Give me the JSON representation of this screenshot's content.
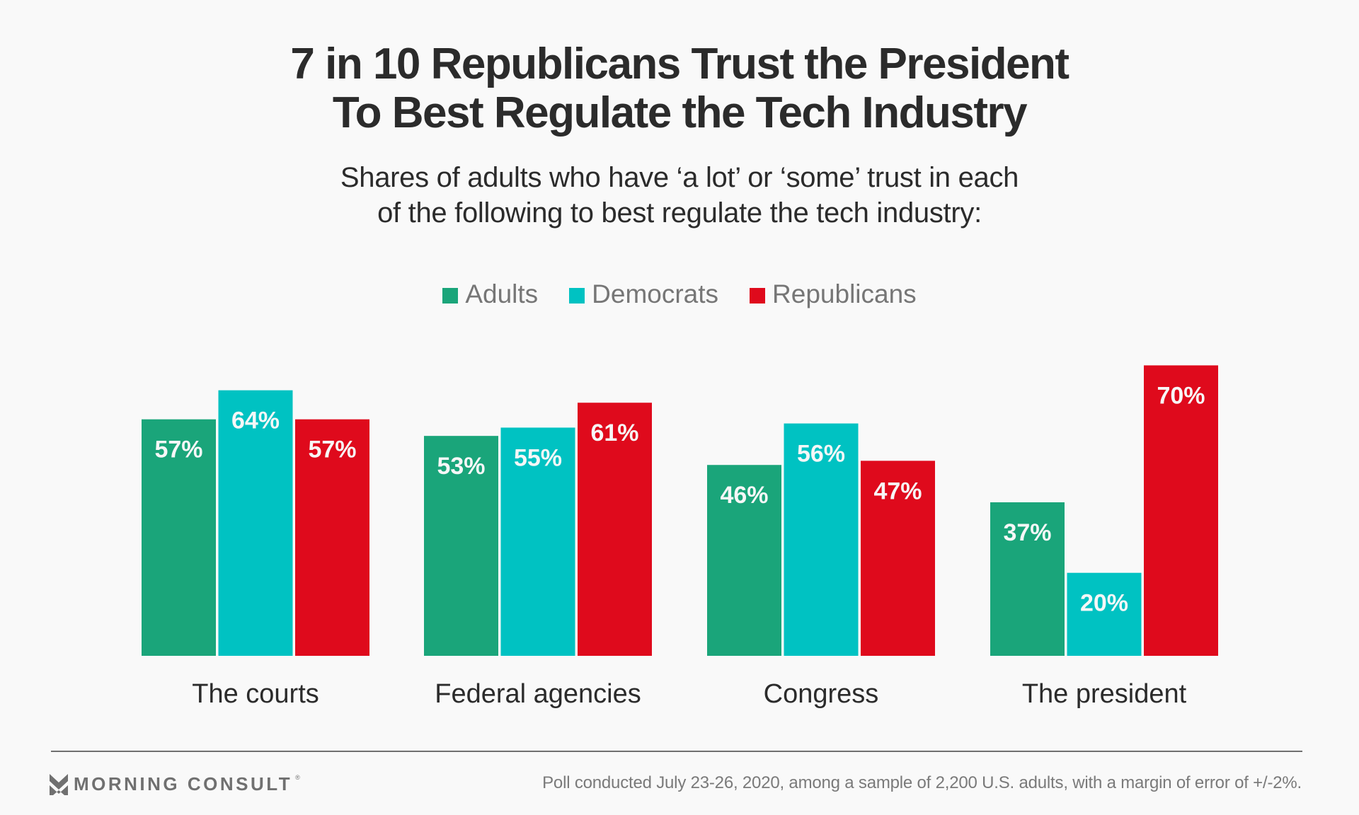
{
  "header": {
    "title_line1": "7 in 10 Republicans Trust the President",
    "title_line2": "To Best Regulate the Tech Industry",
    "subtitle_line1": "Shares of adults who have ‘a lot’ or ‘some’ trust in each",
    "subtitle_line2": "of the following to best regulate the tech industry:"
  },
  "chart_data": {
    "type": "bar",
    "title": "7 in 10 Republicans Trust the President To Best Regulate the Tech Industry",
    "subtitle": "Shares of adults who have ‘a lot’ or ‘some’ trust in each of the following to best regulate the tech industry:",
    "xlabel": "",
    "ylabel": "",
    "ylim": [
      0,
      70
    ],
    "grid": false,
    "legend_position": "top-center",
    "value_suffix": "%",
    "categories": [
      "The courts",
      "Federal agencies",
      "Congress",
      "The president"
    ],
    "series": [
      {
        "name": "Adults",
        "color": "#1aa57a",
        "values": [
          57,
          53,
          46,
          37
        ]
      },
      {
        "name": "Democrats",
        "color": "#00c2c2",
        "values": [
          64,
          55,
          56,
          20
        ]
      },
      {
        "name": "Republicans",
        "color": "#df0a1c",
        "values": [
          57,
          61,
          47,
          70
        ]
      }
    ]
  },
  "footer": {
    "brand": "MORNING CONSULT",
    "brand_mark": "®",
    "source": "Poll conducted July 23-26, 2020, among a sample of 2,200 U.S. adults, with a margin of error of +/-2%."
  },
  "icons": {
    "logo": "morning-consult-chevron-logo-icon"
  }
}
